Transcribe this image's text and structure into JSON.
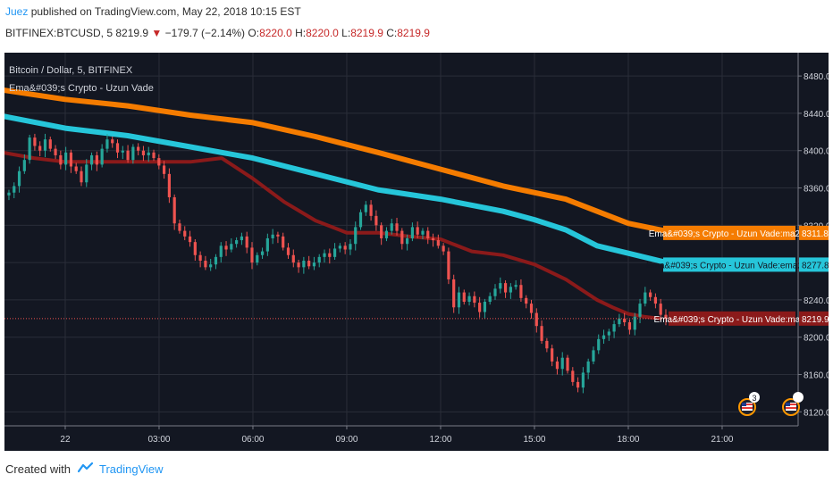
{
  "header": {
    "author": "Juez",
    "published": "published on TradingView.com, May 22, 2018 10:15 EST",
    "symbol": "BITFINEX:BTCUSD, 5",
    "last": "8219.9",
    "change": "−179.7 (−2.14%)",
    "o_label": "O:",
    "o_value": "8220.0",
    "h_label": "H:",
    "h_value": "8220.0",
    "l_label": "L:",
    "l_value": "8219.9",
    "c_label": "C:",
    "c_value": "8219.9"
  },
  "colors": {
    "background": "#131722",
    "grid": "#2a2e39",
    "up": "#26a69a",
    "down": "#ef5350",
    "ma260": "#f57c00",
    "ema201": "#26c6da",
    "ma70": "#8b1a1a",
    "price_line": "#ef5350"
  },
  "footer": {
    "created_with": "Created with",
    "brand": "TradingView"
  },
  "chart_data": {
    "type": "candlestick",
    "title": "Bitcoin / Dollar, 5, BITFINEX",
    "indicator": "Ema&#039;s Crypto - Uzun Vade",
    "x_ticks": [
      "22",
      "03:00",
      "06:00",
      "09:00",
      "12:00",
      "15:00",
      "18:00",
      "21:00"
    ],
    "y_ticks": [
      8120,
      8160,
      8200,
      8240,
      8280,
      8320,
      8360,
      8400,
      8440,
      8480
    ],
    "y_tick_labels": [
      "8120.0",
      "8160.0",
      "8200.0",
      "8240.0",
      "8280.0",
      "8320.0",
      "8360.0",
      "8400.0",
      "8440.0",
      "8480.0"
    ],
    "ylim": [
      8105,
      8505
    ],
    "xlim": [
      -1.8,
      28.5
    ],
    "grid": true,
    "series": [
      {
        "name": "ma260",
        "label": "Ema&#039;s Crypto - Uzun Vade:ma260",
        "value_label": "8311.8",
        "x": [
          -2,
          0,
          2,
          4,
          6,
          8,
          10,
          12,
          14,
          16,
          18,
          19.5
        ],
        "y": [
          8465,
          8455,
          8448,
          8438,
          8430,
          8415,
          8398,
          8380,
          8362,
          8348,
          8322,
          8311.8
        ]
      },
      {
        "name": "ema201",
        "label": "Ema&#039;s Crypto - Uzun Vade:ema201",
        "value_label": "8277.8",
        "x": [
          -2,
          0,
          2,
          4,
          6,
          8,
          10,
          12,
          14,
          15,
          16,
          17,
          18,
          19.5
        ],
        "y": [
          8437,
          8424,
          8416,
          8404,
          8392,
          8375,
          8358,
          8348,
          8335,
          8326,
          8315,
          8298,
          8290,
          8277.8
        ]
      },
      {
        "name": "ma70",
        "label": "Ema&#039;s Crypto - Uzun Vade:ma70",
        "value_label": "8219.9",
        "x": [
          -2,
          -1,
          0,
          2,
          4,
          5,
          6,
          7,
          8,
          9,
          10,
          11,
          12,
          13,
          14,
          15,
          16,
          17,
          17.5,
          18,
          18.5,
          19
        ],
        "y": [
          8398,
          8392,
          8388,
          8388,
          8388,
          8392,
          8370,
          8345,
          8325,
          8312,
          8312,
          8308,
          8305,
          8292,
          8288,
          8278,
          8262,
          8240,
          8232,
          8225,
          8222,
          8220
        ]
      }
    ],
    "ohlc_close": [
      8355,
      8362,
      8378,
      8390,
      8414,
      8405,
      8400,
      8412,
      8402,
      8395,
      8385,
      8398,
      8383,
      8378,
      8366,
      8385,
      8395,
      8385,
      8402,
      8412,
      8408,
      8398,
      8400,
      8390,
      8404,
      8400,
      8395,
      8398,
      8392,
      8384,
      8375,
      8350,
      8322,
      8314,
      8308,
      8302,
      8288,
      8282,
      8275,
      8278,
      8286,
      8298,
      8294,
      8300,
      8304,
      8308,
      8296,
      8280,
      8288,
      8292,
      8306,
      8310,
      8308,
      8296,
      8288,
      8280,
      8275,
      8282,
      8276,
      8280,
      8286,
      8290,
      8286,
      8295,
      8298,
      8294,
      8300,
      8318,
      8334,
      8342,
      8330,
      8320,
      8306,
      8314,
      8322,
      8314,
      8300,
      8306,
      8318,
      8310,
      8314,
      8306,
      8304,
      8298,
      8292,
      8262,
      8232,
      8248,
      8238,
      8244,
      8237,
      8227,
      8238,
      8244,
      8252,
      8258,
      8248,
      8254,
      8256,
      8242,
      8236,
      8226,
      8212,
      8196,
      8188,
      8174,
      8166,
      8178,
      8164,
      8152,
      8146,
      8162,
      8174,
      8186,
      8198,
      8202,
      8206,
      8214,
      8220,
      8216,
      8208,
      8222,
      8236,
      8248,
      8243,
      8236,
      8224,
      8219.9
    ]
  }
}
